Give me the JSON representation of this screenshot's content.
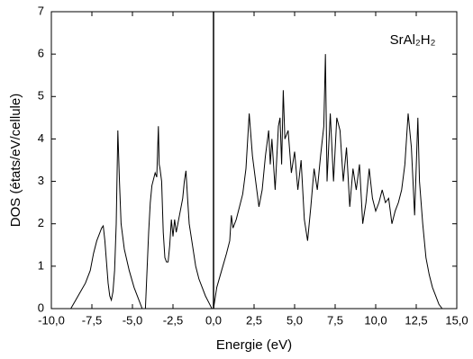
{
  "chart_data": {
    "type": "line",
    "xlabel": "Energie (eV)",
    "ylabel": "DOS (états/eV/cellule)",
    "annotation": "SrAl₂H₂",
    "x": [
      -8.8,
      -8.5,
      -8.2,
      -7.9,
      -7.6,
      -7.4,
      -7.2,
      -7.0,
      -6.9,
      -6.8,
      -6.7,
      -6.6,
      -6.5,
      -6.4,
      -6.3,
      -6.2,
      -6.1,
      -6.0,
      -5.9,
      -5.8,
      -5.7,
      -5.5,
      -5.2,
      -4.9,
      -4.6,
      -4.4,
      -4.2,
      -4.0,
      -3.9,
      -3.8,
      -3.6,
      -3.5,
      -3.4,
      -3.35,
      -3.3,
      -3.2,
      -3.1,
      -3.0,
      -2.9,
      -2.8,
      -2.7,
      -2.6,
      -2.5,
      -2.4,
      -2.3,
      -2.1,
      -1.9,
      -1.8,
      -1.7,
      -1.6,
      -1.5,
      -1.3,
      -1.1,
      -0.9,
      -0.7,
      -0.5,
      -0.3,
      -0.1,
      0.0,
      0.2,
      0.5,
      0.8,
      1.0,
      1.1,
      1.2,
      1.4,
      1.6,
      1.8,
      2.0,
      2.2,
      2.4,
      2.6,
      2.8,
      3.0,
      3.2,
      3.4,
      3.5,
      3.6,
      3.8,
      4.0,
      4.1,
      4.2,
      4.3,
      4.4,
      4.6,
      4.8,
      5.0,
      5.2,
      5.4,
      5.6,
      5.8,
      6.0,
      6.2,
      6.4,
      6.6,
      6.8,
      6.9,
      7.0,
      7.2,
      7.4,
      7.6,
      7.8,
      8.0,
      8.2,
      8.4,
      8.6,
      8.8,
      9.0,
      9.2,
      9.4,
      9.6,
      9.8,
      10.0,
      10.2,
      10.4,
      10.6,
      10.8,
      11.0,
      11.2,
      11.4,
      11.6,
      11.8,
      12.0,
      12.2,
      12.4,
      12.6,
      12.7,
      12.9,
      13.1,
      13.3,
      13.5,
      13.7,
      13.9,
      14.1
    ],
    "values": [
      0,
      0.2,
      0.4,
      0.6,
      0.9,
      1.3,
      1.6,
      1.8,
      1.9,
      1.95,
      1.6,
      1.1,
      0.6,
      0.3,
      0.2,
      0.4,
      0.9,
      2.0,
      4.2,
      3.0,
      2.0,
      1.4,
      0.9,
      0.5,
      0.2,
      0,
      0,
      1.8,
      2.5,
      2.9,
      3.2,
      3.1,
      4.3,
      3.4,
      3.3,
      3.0,
      1.8,
      1.2,
      1.1,
      1.1,
      1.5,
      2.1,
      1.7,
      2.1,
      1.8,
      2.2,
      2.6,
      3.0,
      3.25,
      2.6,
      2.0,
      1.5,
      1.0,
      0.7,
      0.5,
      0.3,
      0.15,
      0,
      0,
      0.5,
      0.9,
      1.3,
      1.6,
      2.2,
      1.9,
      2.1,
      2.4,
      2.7,
      3.3,
      4.6,
      3.6,
      3.0,
      2.4,
      2.8,
      3.6,
      4.2,
      3.4,
      4.0,
      2.8,
      4.3,
      4.5,
      3.4,
      5.15,
      4.0,
      4.2,
      3.2,
      3.7,
      2.8,
      3.5,
      2.1,
      1.6,
      2.4,
      3.3,
      2.8,
      3.6,
      4.3,
      6.0,
      3.0,
      4.6,
      3.0,
      4.5,
      4.2,
      3.0,
      3.8,
      2.4,
      3.3,
      2.8,
      3.4,
      2.0,
      2.5,
      3.3,
      2.6,
      2.3,
      2.5,
      2.8,
      2.5,
      2.6,
      2.0,
      2.3,
      2.5,
      2.8,
      3.4,
      4.6,
      3.8,
      2.2,
      4.5,
      3.0,
      2.0,
      1.2,
      0.8,
      0.5,
      0.3,
      0.1,
      0
    ],
    "color": "#000000",
    "vline": 0,
    "xlim": [
      -10,
      15
    ],
    "xticks": [
      {
        "value": -10,
        "label": "-10,0"
      },
      {
        "value": -7.5,
        "label": "-7,5"
      },
      {
        "value": -5,
        "label": "-5,0"
      },
      {
        "value": -2.5,
        "label": "-2,5"
      },
      {
        "value": 0,
        "label": "0,0"
      },
      {
        "value": 2.5,
        "label": "2,5"
      },
      {
        "value": 5,
        "label": "5,0"
      },
      {
        "value": 7.5,
        "label": "7,5"
      },
      {
        "value": 10,
        "label": "10,0"
      },
      {
        "value": 12.5,
        "label": "12,5"
      },
      {
        "value": 15,
        "label": "15,0"
      }
    ],
    "ylim": [
      0,
      7
    ],
    "yticks": [
      0,
      1,
      2,
      3,
      4,
      5,
      6,
      7
    ]
  }
}
